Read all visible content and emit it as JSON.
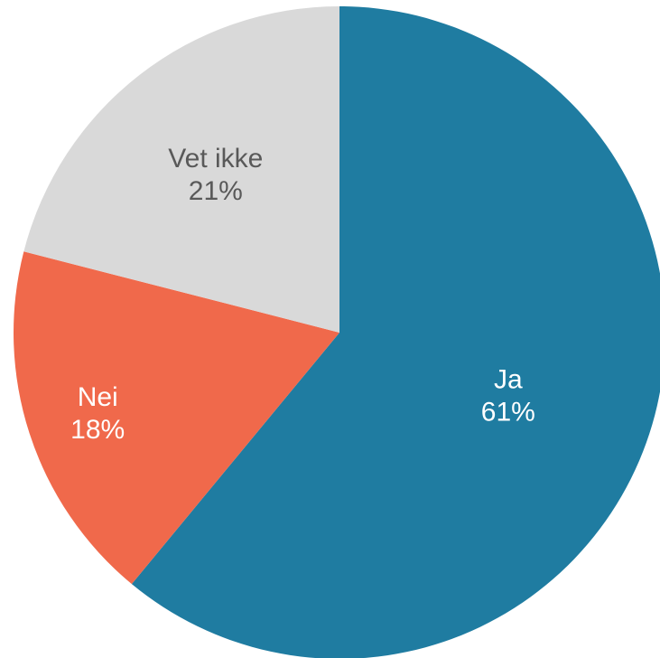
{
  "chart_data": {
    "type": "pie",
    "title": "",
    "slices": [
      {
        "category": "Ja",
        "value": 61,
        "value_label": "61%",
        "color": "#1f7ca1",
        "label_color": "#ffffff"
      },
      {
        "category": "Nei",
        "value": 18,
        "value_label": "18%",
        "color": "#f0694b",
        "label_color": "#ffffff"
      },
      {
        "category": "Vet ikke",
        "value": 21,
        "value_label": "21%",
        "color": "#d9d9d9",
        "label_color": "#595959"
      }
    ],
    "start_angle": "12 o'clock",
    "direction": "clockwise"
  }
}
